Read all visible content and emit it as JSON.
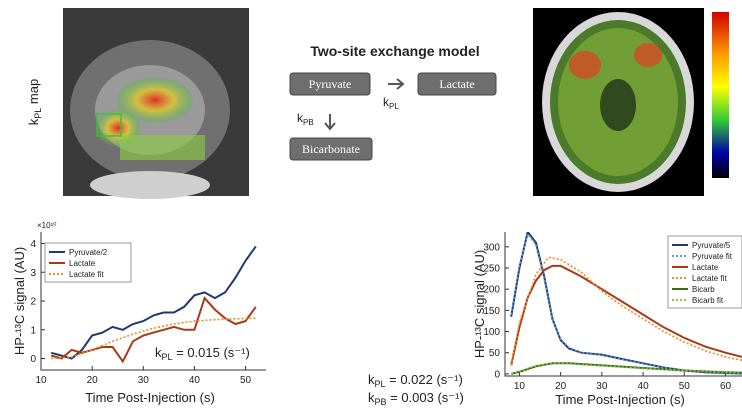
{
  "figure": {
    "map_label": {
      "k": "k",
      "sub": "PL",
      "rest": " map"
    },
    "model_title": "Two-site exchange model",
    "box_pyruvate": "Pyruvate",
    "box_lactate": "Lactate",
    "box_bicarbonate": "Bicarbonate",
    "rate_pl": {
      "k": "k",
      "sub": "PL"
    },
    "rate_pb": {
      "k": "k",
      "sub": "PB"
    }
  },
  "chart_data": [
    {
      "type": "line",
      "y_label": "HP-¹³C signal (AU)",
      "x_label": "Time Post-Injection (s)",
      "y_exponent_label": "×10¹⁰",
      "annotations": [
        {
          "k": "k",
          "sub": "PL",
          "rest": " = 0.015 (s⁻¹)"
        }
      ],
      "xlim": [
        10,
        54
      ],
      "xticks": [
        10,
        20,
        30,
        40,
        50
      ],
      "ylim": [
        -0.4,
        4.4
      ],
      "yticks": [
        0,
        1,
        2,
        3,
        4
      ],
      "series": [
        {
          "name": "Pyruvate/2",
          "color": "#1f3a6e",
          "style": "solid",
          "x": [
            12,
            14,
            16,
            18,
            20,
            22,
            24,
            26,
            28,
            30,
            32,
            34,
            36,
            38,
            40,
            42,
            44,
            46,
            48,
            50,
            52
          ],
          "values": [
            0.2,
            0.1,
            0.0,
            0.3,
            0.8,
            0.9,
            1.1,
            1.0,
            1.2,
            1.3,
            1.5,
            1.6,
            1.6,
            1.8,
            2.2,
            2.3,
            2.1,
            2.3,
            2.8,
            3.4,
            3.9
          ]
        },
        {
          "name": "Lactate",
          "color": "#a83a16",
          "style": "solid",
          "x": [
            12,
            14,
            16,
            18,
            20,
            22,
            24,
            26,
            28,
            30,
            32,
            34,
            36,
            38,
            40,
            42,
            44,
            46,
            48,
            50,
            52
          ],
          "values": [
            0.1,
            0.0,
            0.3,
            0.2,
            0.3,
            0.4,
            0.4,
            -0.1,
            0.6,
            0.8,
            0.9,
            1.0,
            1.1,
            1.0,
            1.0,
            2.1,
            1.7,
            1.4,
            1.2,
            1.3,
            1.8
          ]
        },
        {
          "name": "Lactate fit",
          "color": "#f08a24",
          "style": "dotted",
          "x": [
            12,
            16,
            20,
            24,
            28,
            32,
            36,
            40,
            44,
            48,
            52
          ],
          "values": [
            0.0,
            0.05,
            0.3,
            0.6,
            0.85,
            1.05,
            1.2,
            1.3,
            1.35,
            1.38,
            1.4
          ]
        }
      ]
    },
    {
      "type": "line",
      "y_label": "HP-¹³C signal (AU)",
      "x_label": "Time Post-Injection (s)",
      "annotations": [
        {
          "k": "k",
          "sub": "PL",
          "rest": " = 0.022 (s⁻¹)"
        },
        {
          "k": "k",
          "sub": "PB",
          "rest": " = 0.003 (s⁻¹)"
        }
      ],
      "xlim": [
        6.5,
        64
      ],
      "xticks": [
        10,
        20,
        30,
        40,
        50,
        60
      ],
      "ylim": [
        -5,
        335
      ],
      "yticks": [
        0,
        50,
        100,
        150,
        200,
        250,
        300
      ],
      "series": [
        {
          "name": "Pyruvate/5",
          "color": "#1f3a6e",
          "style": "solid",
          "x": [
            8,
            10,
            12,
            14,
            16,
            18,
            20,
            22,
            25,
            30,
            35,
            40,
            45,
            50,
            55,
            60,
            64
          ],
          "values": [
            135,
            250,
            335,
            310,
            230,
            130,
            80,
            60,
            50,
            45,
            35,
            25,
            15,
            8,
            4,
            2,
            1
          ]
        },
        {
          "name": "Pyruvate fit",
          "color": "#5b9bd5",
          "style": "dotted",
          "x": [
            8,
            10,
            12,
            14,
            16,
            18,
            20,
            22,
            25,
            30,
            35,
            40,
            45,
            50,
            55,
            60,
            64
          ],
          "values": [
            140,
            255,
            330,
            305,
            225,
            128,
            82,
            62,
            50,
            44,
            34,
            24,
            15,
            8,
            4,
            2,
            1
          ]
        },
        {
          "name": "Lactate",
          "color": "#a83a16",
          "style": "solid",
          "x": [
            8,
            10,
            12,
            14,
            16,
            18,
            20,
            25,
            30,
            35,
            40,
            45,
            50,
            55,
            60,
            64
          ],
          "values": [
            20,
            110,
            180,
            220,
            245,
            255,
            255,
            230,
            200,
            170,
            140,
            110,
            85,
            65,
            50,
            40
          ]
        },
        {
          "name": "Lactate fit",
          "color": "#f08a24",
          "style": "dotted",
          "x": [
            8,
            10,
            14,
            17,
            20,
            25,
            30,
            35,
            40,
            45,
            50,
            55,
            60,
            64
          ],
          "values": [
            20,
            120,
            235,
            275,
            270,
            240,
            195,
            160,
            130,
            100,
            75,
            55,
            40,
            32
          ]
        },
        {
          "name": "Bicarb",
          "color": "#3a6b1e",
          "style": "solid",
          "x": [
            8,
            10,
            14,
            18,
            22,
            30,
            40,
            50,
            60,
            64
          ],
          "values": [
            0,
            5,
            18,
            25,
            25,
            20,
            14,
            8,
            4,
            3
          ]
        },
        {
          "name": "Bicarb fit",
          "color": "#8cc63f",
          "style": "dotted",
          "x": [
            8,
            10,
            14,
            18,
            22,
            30,
            40,
            50,
            60,
            64
          ],
          "values": [
            1,
            6,
            19,
            26,
            24,
            19,
            13,
            8,
            4,
            3
          ]
        }
      ]
    }
  ]
}
